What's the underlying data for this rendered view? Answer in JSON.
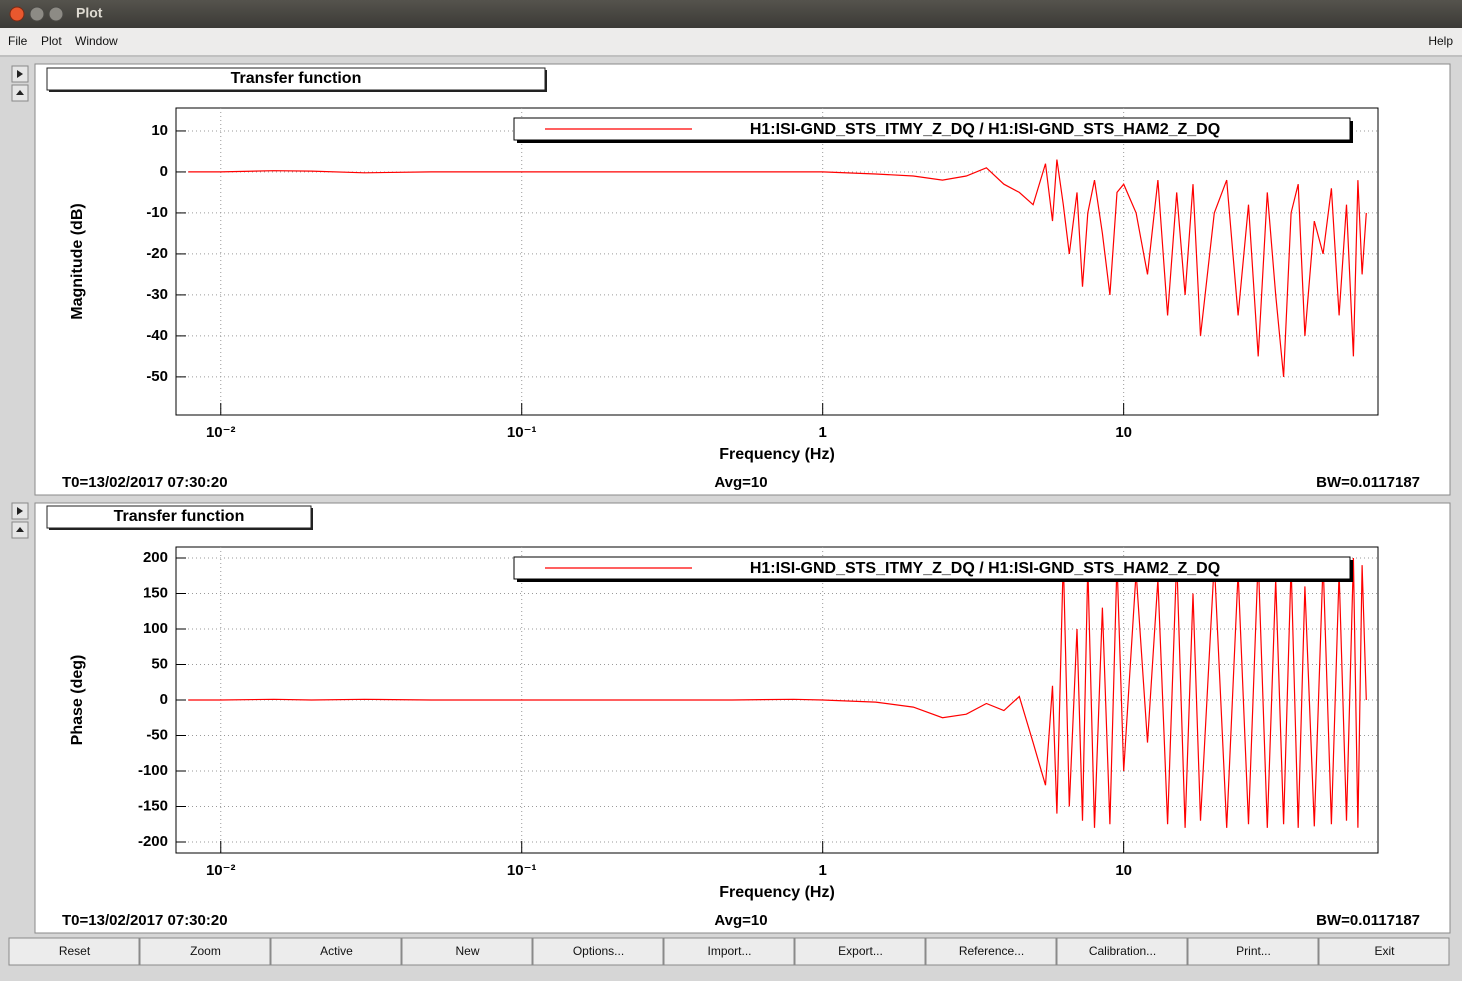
{
  "window": {
    "title": "Plot"
  },
  "menu": {
    "left": [
      "File",
      "Plot",
      "Window"
    ],
    "right": "Help"
  },
  "chart_data": [
    {
      "type": "line",
      "title": "Transfer function",
      "x_label": "Frequency (Hz)",
      "y_label": "Magnitude (dB)",
      "xscale": "log",
      "grid": true,
      "legend": "top-right",
      "xlim": [
        0.0071,
        70
      ],
      "ylim": [
        -59.3,
        15.6
      ],
      "xticks": [
        {
          "value": 0.01,
          "label": "10⁻²"
        },
        {
          "value": 0.1,
          "label": "10⁻¹"
        },
        1,
        10
      ],
      "yticks": [
        -50,
        -40,
        -30,
        -20,
        -10,
        0,
        10
      ],
      "x": [
        0.0078,
        0.01,
        0.015,
        0.02,
        0.03,
        0.05,
        0.1,
        0.2,
        0.5,
        0.8,
        1,
        1.5,
        2,
        2.5,
        3,
        3.5,
        4,
        4.5,
        5,
        5.5,
        5.8,
        6,
        6.3,
        6.6,
        7,
        7.3,
        7.6,
        8,
        8.5,
        9,
        9.5,
        10,
        11,
        12,
        13,
        14,
        15,
        16,
        17,
        18,
        20,
        22,
        24,
        26,
        28,
        30,
        32,
        34,
        36,
        38,
        40,
        43,
        46,
        49,
        52,
        55,
        58,
        60,
        62,
        64
      ],
      "series": [
        {
          "name": "H1:ISI-GND_STS_ITMY_Z_DQ / H1:ISI-GND_STS_HAM2_Z_DQ",
          "color": "#ff0000",
          "values": [
            0,
            0,
            0.3,
            0.2,
            -0.2,
            0,
            0,
            0,
            0,
            0,
            0,
            -0.5,
            -1,
            -2,
            -1,
            1,
            -3,
            -5,
            -8,
            2,
            -12,
            3,
            -8,
            -20,
            -5,
            -28,
            -10,
            -2,
            -15,
            -30,
            -5,
            -3,
            -10,
            -25,
            -2,
            -35,
            -5,
            -30,
            -3,
            -40,
            -10,
            -2,
            -35,
            -8,
            -45,
            -5,
            -30,
            -50,
            -10,
            -3,
            -40,
            -12,
            -20,
            -4,
            -35,
            -8,
            -45,
            -2,
            -25,
            -10
          ]
        }
      ],
      "footer": [
        "T0=13/02/2017 07:30:20",
        "Avg=10",
        "BW=0.0117187"
      ]
    },
    {
      "type": "line",
      "title": "Transfer function",
      "x_label": "Frequency (Hz)",
      "y_label": "Phase (deg)",
      "xscale": "log",
      "grid": true,
      "legend": "top-right",
      "xlim": [
        0.0071,
        70
      ],
      "ylim": [
        -215.5,
        215.5
      ],
      "xticks": [
        {
          "value": 0.01,
          "label": "10⁻²"
        },
        {
          "value": 0.1,
          "label": "10⁻¹"
        },
        1,
        10
      ],
      "yticks": [
        -200,
        -150,
        -100,
        -50,
        0,
        50,
        100,
        150,
        200
      ],
      "x": [
        0.0078,
        0.01,
        0.015,
        0.02,
        0.03,
        0.05,
        0.1,
        0.2,
        0.5,
        0.8,
        1,
        1.5,
        2,
        2.5,
        3,
        3.5,
        4,
        4.5,
        5,
        5.5,
        5.8,
        6,
        6.3,
        6.6,
        7,
        7.3,
        7.6,
        8,
        8.5,
        9,
        9.5,
        10,
        11,
        12,
        13,
        14,
        15,
        16,
        17,
        18,
        20,
        22,
        24,
        26,
        28,
        30,
        32,
        34,
        36,
        38,
        40,
        43,
        46,
        49,
        52,
        55,
        58,
        60,
        62,
        64
      ],
      "series": [
        {
          "name": "H1:ISI-GND_STS_ITMY_Z_DQ / H1:ISI-GND_STS_HAM2_Z_DQ",
          "color": "#ff0000",
          "values": [
            0,
            0,
            1,
            0,
            1,
            0,
            0,
            0,
            0,
            1,
            0,
            -3,
            -10,
            -25,
            -20,
            -5,
            -15,
            5,
            -60,
            -120,
            20,
            -160,
            200,
            -150,
            100,
            -170,
            190,
            -180,
            130,
            -175,
            195,
            -100,
            180,
            -60,
            170,
            -175,
            200,
            -180,
            150,
            -170,
            195,
            -180,
            180,
            -175,
            200,
            -180,
            170,
            -175,
            190,
            -180,
            160,
            -178,
            195,
            -175,
            180,
            -170,
            200,
            -180,
            190,
            0
          ]
        }
      ],
      "footer": [
        "T0=13/02/2017 07:30:20",
        "Avg=10",
        "BW=0.0117187"
      ]
    }
  ],
  "buttons": [
    "Reset",
    "Zoom",
    "Active",
    "New",
    "Options...",
    "Import...",
    "Export...",
    "Reference...",
    "Calibration...",
    "Print...",
    "Exit"
  ]
}
